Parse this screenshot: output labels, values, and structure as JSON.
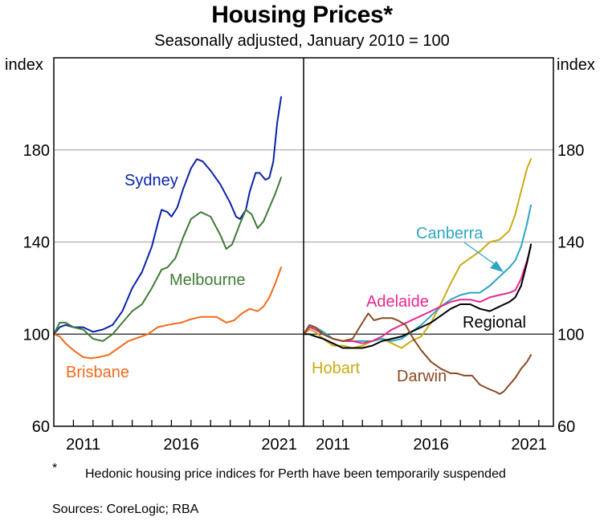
{
  "chart_data": {
    "type": "line",
    "title": "Housing Prices*",
    "subtitle": "Seasonally adjusted, January 2010 = 100",
    "ylabel_left": "index",
    "ylabel_right": "index",
    "ylim": [
      60,
      220
    ],
    "yticks": [
      60,
      100,
      140,
      180
    ],
    "ytick_labels": [
      "60",
      "100",
      "140",
      "180"
    ],
    "xlim": [
      2010.0,
      2022.75
    ],
    "xtick_labels": [
      "2011",
      "2016",
      "2021"
    ],
    "xtick_label_years": [
      2011.5,
      2016.5,
      2021.5
    ],
    "grid": true,
    "reference_line": 100,
    "panels": [
      {
        "name": "left",
        "series": [
          {
            "name": "Sydney",
            "color": "#0a22a8",
            "label": "Sydney",
            "x": [
              2010.0,
              2010.3,
              2010.6,
              2011.0,
              2011.5,
              2012.0,
              2012.5,
              2013.0,
              2013.5,
              2014.0,
              2014.5,
              2015.0,
              2015.3,
              2015.5,
              2015.8,
              2016.0,
              2016.3,
              2016.6,
              2017.0,
              2017.3,
              2017.6,
              2018.0,
              2018.5,
              2019.0,
              2019.3,
              2019.5,
              2019.8,
              2020.0,
              2020.3,
              2020.5,
              2020.8,
              2021.0,
              2021.2,
              2021.4,
              2021.6
            ],
            "y": [
              100,
              103,
              104,
              103,
              103,
              101,
              102,
              104,
              110,
              120,
              127,
              138,
              148,
              154,
              153,
              151,
              155,
              163,
              172,
              176,
              175,
              171,
              165,
              157,
              151,
              150,
              154,
              162,
              170,
              170,
              167,
              168,
              175,
              192,
              203
            ]
          },
          {
            "name": "Melbourne",
            "color": "#3e7b35",
            "label": "Melbourne",
            "x": [
              2010.0,
              2010.3,
              2010.6,
              2011.0,
              2011.5,
              2012.0,
              2012.5,
              2013.0,
              2013.5,
              2014.0,
              2014.5,
              2015.0,
              2015.5,
              2015.8,
              2016.2,
              2016.6,
              2017.0,
              2017.5,
              2018.0,
              2018.5,
              2018.8,
              2019.1,
              2019.5,
              2019.8,
              2020.1,
              2020.4,
              2020.7,
              2021.0,
              2021.3,
              2021.6
            ],
            "y": [
              100,
              105,
              105,
              103,
              102,
              98,
              97,
              100,
              105,
              110,
              113,
              120,
              128,
              129,
              133,
              142,
              150,
              153,
              151,
              143,
              137,
              139,
              148,
              154,
              152,
              146,
              149,
              155,
              161,
              168
            ]
          },
          {
            "name": "Brisbane",
            "color": "#f26a1b",
            "label": "Brisbane",
            "x": [
              2010.0,
              2010.3,
              2010.6,
              2011.0,
              2011.5,
              2011.9,
              2012.3,
              2012.8,
              2013.3,
              2013.8,
              2014.3,
              2014.8,
              2015.3,
              2015.8,
              2016.5,
              2017.0,
              2017.5,
              2018.3,
              2018.8,
              2019.2,
              2019.6,
              2020.0,
              2020.4,
              2020.7,
              2021.0,
              2021.3,
              2021.6
            ],
            "y": [
              100,
              99,
              96,
              93,
              90,
              89.5,
              90,
              91,
              94,
              97,
              98.5,
              100,
              103,
              104,
              105,
              106.5,
              107.5,
              107.5,
              105,
              106,
              109,
              111,
              110,
              112,
              116,
              122,
              129
            ]
          }
        ]
      },
      {
        "name": "right",
        "series": [
          {
            "name": "Hobart",
            "color": "#ccaa10",
            "label": "Hobart",
            "x": [
              2010.0,
              2010.3,
              2010.6,
              2011.0,
              2011.5,
              2012.0,
              2012.5,
              2013.0,
              2013.5,
              2014.0,
              2014.5,
              2015.0,
              2015.5,
              2016.0,
              2016.5,
              2017.0,
              2017.5,
              2018.0,
              2018.5,
              2019.0,
              2019.5,
              2020.0,
              2020.5,
              2020.8,
              2021.1,
              2021.4,
              2021.6
            ],
            "y": [
              100,
              102,
              101,
              98,
              95,
              95,
              94,
              95,
              97,
              98,
              96,
              94,
              97,
              99,
              105,
              113,
              122,
              130,
              133,
              136,
              140,
              141,
              145,
              152,
              162,
              172,
              176
            ]
          },
          {
            "name": "Canberra",
            "color": "#2ea5c2",
            "label": "Canberra",
            "x": [
              2010.0,
              2010.3,
              2010.6,
              2011.0,
              2011.5,
              2012.0,
              2012.5,
              2013.0,
              2013.5,
              2014.0,
              2014.5,
              2015.0,
              2015.5,
              2016.0,
              2016.5,
              2017.0,
              2017.5,
              2018.0,
              2018.5,
              2019.0,
              2019.5,
              2020.0,
              2020.5,
              2020.8,
              2021.1,
              2021.4,
              2021.6
            ],
            "y": [
              100,
              103,
              103,
              101,
              98,
              97,
              97,
              97,
              97,
              98,
              97,
              98,
              101,
              104,
              108,
              112,
              115,
              117,
              118,
              118,
              121,
              125,
              129,
              132,
              138,
              148,
              156
            ]
          },
          {
            "name": "Adelaide",
            "color": "#e6278f",
            "label": "Adelaide",
            "x": [
              2010.0,
              2010.3,
              2010.6,
              2011.0,
              2011.5,
              2012.0,
              2012.5,
              2013.0,
              2013.5,
              2014.0,
              2014.5,
              2015.0,
              2015.5,
              2016.0,
              2016.5,
              2017.0,
              2017.5,
              2018.0,
              2018.5,
              2019.0,
              2019.5,
              2020.0,
              2020.5,
              2020.8,
              2021.1,
              2021.4,
              2021.6
            ],
            "y": [
              100,
              103,
              102,
              100,
              98,
              97,
              97,
              96,
              97,
              99,
              102,
              104,
              106,
              108,
              110,
              112,
              114,
              115,
              115,
              114,
              116,
              117,
              118,
              119,
              124,
              132,
              138
            ]
          },
          {
            "name": "Regional",
            "color": "#000000",
            "label": "Regional",
            "x": [
              2010.0,
              2010.3,
              2010.6,
              2011.0,
              2011.5,
              2012.0,
              2012.5,
              2013.0,
              2013.5,
              2014.0,
              2014.5,
              2015.0,
              2015.5,
              2016.0,
              2016.5,
              2017.0,
              2017.5,
              2018.0,
              2018.5,
              2019.0,
              2019.5,
              2020.0,
              2020.5,
              2020.8,
              2021.1,
              2021.4,
              2021.6
            ],
            "y": [
              100,
              100,
              99,
              98,
              96,
              94,
              94,
              94,
              95,
              97,
              98,
              99,
              101,
              103,
              105,
              108,
              111,
              113,
              113,
              111,
              110,
              112,
              114,
              116,
              121,
              131,
              139
            ]
          },
          {
            "name": "Darwin",
            "color": "#8b4a22",
            "label": "Darwin",
            "x": [
              2010.0,
              2010.3,
              2010.6,
              2011.0,
              2011.5,
              2012.0,
              2012.5,
              2013.0,
              2013.3,
              2013.6,
              2014.0,
              2014.5,
              2014.8,
              2015.2,
              2015.6,
              2016.0,
              2016.5,
              2017.0,
              2017.5,
              2017.8,
              2018.2,
              2018.6,
              2019.0,
              2019.5,
              2019.8,
              2020.0,
              2020.2,
              2020.5,
              2020.8,
              2021.1,
              2021.4,
              2021.6
            ],
            "y": [
              100,
              104,
              103,
              100,
              98,
              97,
              98,
              105,
              109,
              106,
              107,
              107,
              106,
              104,
              98,
              93,
              88,
              85,
              83,
              83,
              82,
              82,
              78,
              76,
              75,
              74,
              75,
              78,
              81,
              85,
              88,
              91
            ]
          }
        ]
      }
    ],
    "annotations": [
      {
        "text": "Sydney",
        "panel": "left"
      },
      {
        "text": "Melbourne",
        "panel": "left"
      },
      {
        "text": "Brisbane",
        "panel": "left"
      },
      {
        "text": "Canberra",
        "panel": "right",
        "arrow": true
      },
      {
        "text": "Adelaide",
        "panel": "right"
      },
      {
        "text": "Regional",
        "panel": "right"
      },
      {
        "text": "Hobart",
        "panel": "right"
      },
      {
        "text": "Darwin",
        "panel": "right"
      }
    ]
  },
  "footnote": {
    "marker": "*",
    "text": "Hedonic housing price indices for Perth have been temporarily suspended"
  },
  "sources": "Sources: CoreLogic; RBA"
}
